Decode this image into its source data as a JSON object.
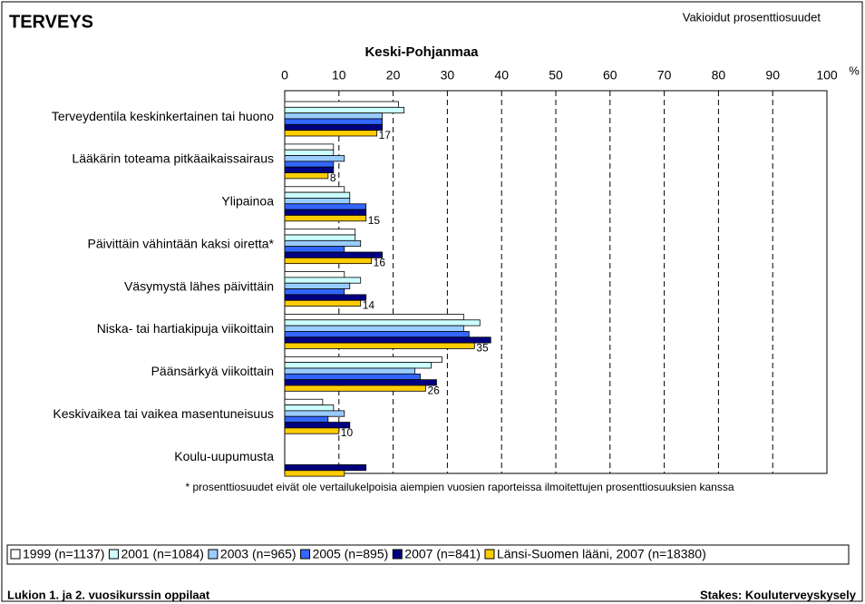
{
  "header": {
    "title": "TERVEYS",
    "subtitle": "Vakioidut prosenttiosuudet"
  },
  "chart_data": {
    "type": "bar",
    "orientation": "horizontal",
    "title": "Keski-Pohjanmaa",
    "xlabel": "%",
    "categories": [
      "Terveydentila keskinkertainen tai huono",
      "Lääkärin toteama pitkäaikaissairaus",
      "Ylipainoa",
      "Päivittäin vähintään kaksi oiretta*",
      "Väsymystä lähes päivittäin",
      "Niska- tai hartiakipuja viikoittain",
      "Päänsärkyä viikoittain",
      "Keskivaikea tai vaikea masentuneisuus",
      "Koulu-uupumusta"
    ],
    "series": [
      {
        "name": "1999 (n=1137)",
        "color": "#ffffff",
        "values": [
          21,
          9,
          11,
          13,
          11,
          33,
          29,
          7,
          null
        ]
      },
      {
        "name": "2001 (n=1084)",
        "color": "#ccffff",
        "values": [
          22,
          9,
          12,
          13,
          14,
          36,
          27,
          9,
          null
        ]
      },
      {
        "name": "2003 (n=965)",
        "color": "#99ccff",
        "values": [
          18,
          11,
          12,
          14,
          12,
          33,
          24,
          11,
          null
        ]
      },
      {
        "name": "2005 (n=895)",
        "color": "#3366ff",
        "values": [
          18,
          9,
          15,
          11,
          11,
          34,
          25,
          8,
          null
        ]
      },
      {
        "name": "2007 (n=841)",
        "color": "#000080",
        "values": [
          18,
          9,
          15,
          18,
          15,
          38,
          28,
          12,
          15
        ]
      },
      {
        "name": "Länsi-Suomen lääni, 2007 (n=18380)",
        "color": "#ffcc00",
        "values": [
          17,
          8,
          15,
          16,
          14,
          35,
          26,
          10,
          11
        ],
        "value_labels": [
          "17",
          "8",
          "15",
          "16",
          "14",
          "35",
          "26",
          "10",
          null
        ]
      }
    ],
    "xlim": [
      0,
      100
    ],
    "xticks": [
      0,
      10,
      20,
      30,
      40,
      50,
      60,
      70,
      80,
      90,
      100
    ],
    "grid": true,
    "footnote": "* prosenttiosuudet eivät ole vertailukelpoisia aiempien vuosien raporteissa ilmoitettujen prosenttiosuuksien kanssa"
  },
  "footer": {
    "left": "Lukion 1. ja 2. vuosikurssin oppilaat",
    "right": "Stakes: Kouluterveyskysely"
  }
}
